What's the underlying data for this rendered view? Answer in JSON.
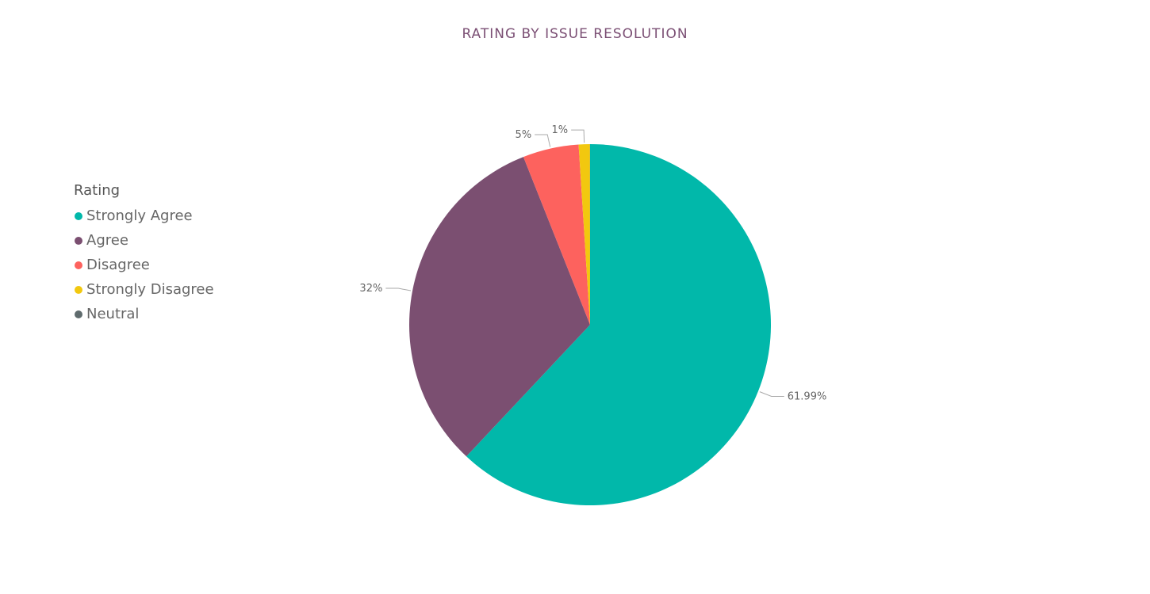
{
  "chart_data": {
    "type": "pie",
    "title": "RATING BY ISSUE RESOLUTION",
    "legend_title": "Rating",
    "legend_position": "left",
    "categories": [
      "Strongly Agree",
      "Agree",
      "Disagree",
      "Strongly Disagree",
      "Neutral"
    ],
    "values": [
      61.99,
      32,
      5,
      1,
      0.01
    ],
    "data_labels": [
      "61.99%",
      "32%",
      "5%",
      "1%",
      ""
    ],
    "colors": [
      "#01b8aa",
      "#7b4f71",
      "#fd625e",
      "#f2c80f",
      "#5f6b6d"
    ]
  }
}
